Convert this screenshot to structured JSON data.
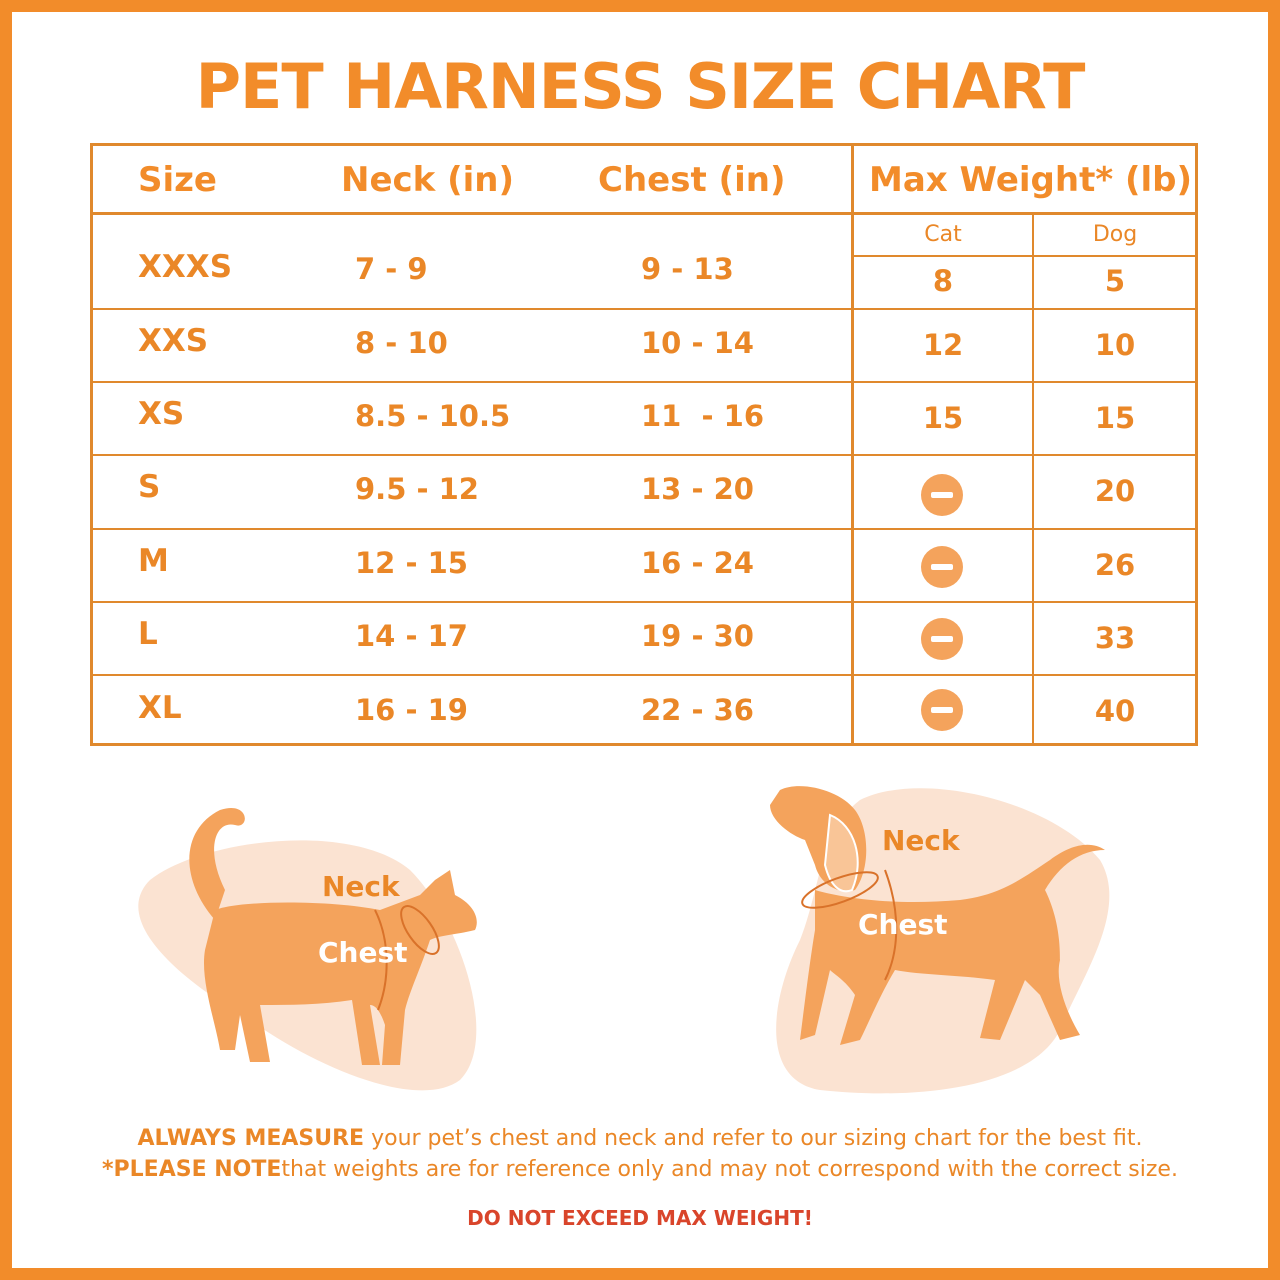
{
  "title": "PET HARNESS SIZE CHART",
  "headers": {
    "size": "Size",
    "neck": "Neck (in)",
    "chest": "Chest (in)",
    "max_weight": "Max Weight* (lb)",
    "cat": "Cat",
    "dog": "Dog"
  },
  "rows": [
    {
      "size": "XXXS",
      "neck": "7 - 9",
      "chest": "9 - 13",
      "cat": "8",
      "dog": "5"
    },
    {
      "size": "XXS",
      "neck": "8 - 10",
      "chest": "10 - 14",
      "cat": "12",
      "dog": "10"
    },
    {
      "size": "XS",
      "neck": "8.5 - 10.5",
      "chest": "11  - 16",
      "cat": "15",
      "dog": "15"
    },
    {
      "size": "S",
      "neck": "9.5 - 12",
      "chest": "13 - 20",
      "cat": null,
      "dog": "20"
    },
    {
      "size": "M",
      "neck": "12 - 15",
      "chest": "16 - 24",
      "cat": null,
      "dog": "26"
    },
    {
      "size": "L",
      "neck": "14 - 17",
      "chest": "19 - 30",
      "cat": null,
      "dog": "33"
    },
    {
      "size": "XL",
      "neck": "16 - 19",
      "chest": "22 - 36",
      "cat": null,
      "dog": "40"
    }
  ],
  "illustrations": {
    "cat": {
      "neck_label": "Neck",
      "chest_label": "Chest",
      "icon": "cat-silhouette-icon"
    },
    "dog": {
      "neck_label": "Neck",
      "chest_label": "Chest",
      "icon": "dog-silhouette-icon"
    }
  },
  "footer": {
    "line1_bold": "ALWAYS MEASURE",
    "line1_rest": " your pet’s chest and neck and refer to our sizing chart for the best fit.",
    "line2_bold": "*PLEASE NOTE",
    "line2_rest": "that weights are for reference only and may not correspond with the correct size.",
    "warning": "DO NOT EXCEED MAX WEIGHT!"
  },
  "colors": {
    "accent": "#f28c2a",
    "blob": "#fbe3d2",
    "silhouette": "#f4a35c",
    "warning": "#d9452b"
  }
}
